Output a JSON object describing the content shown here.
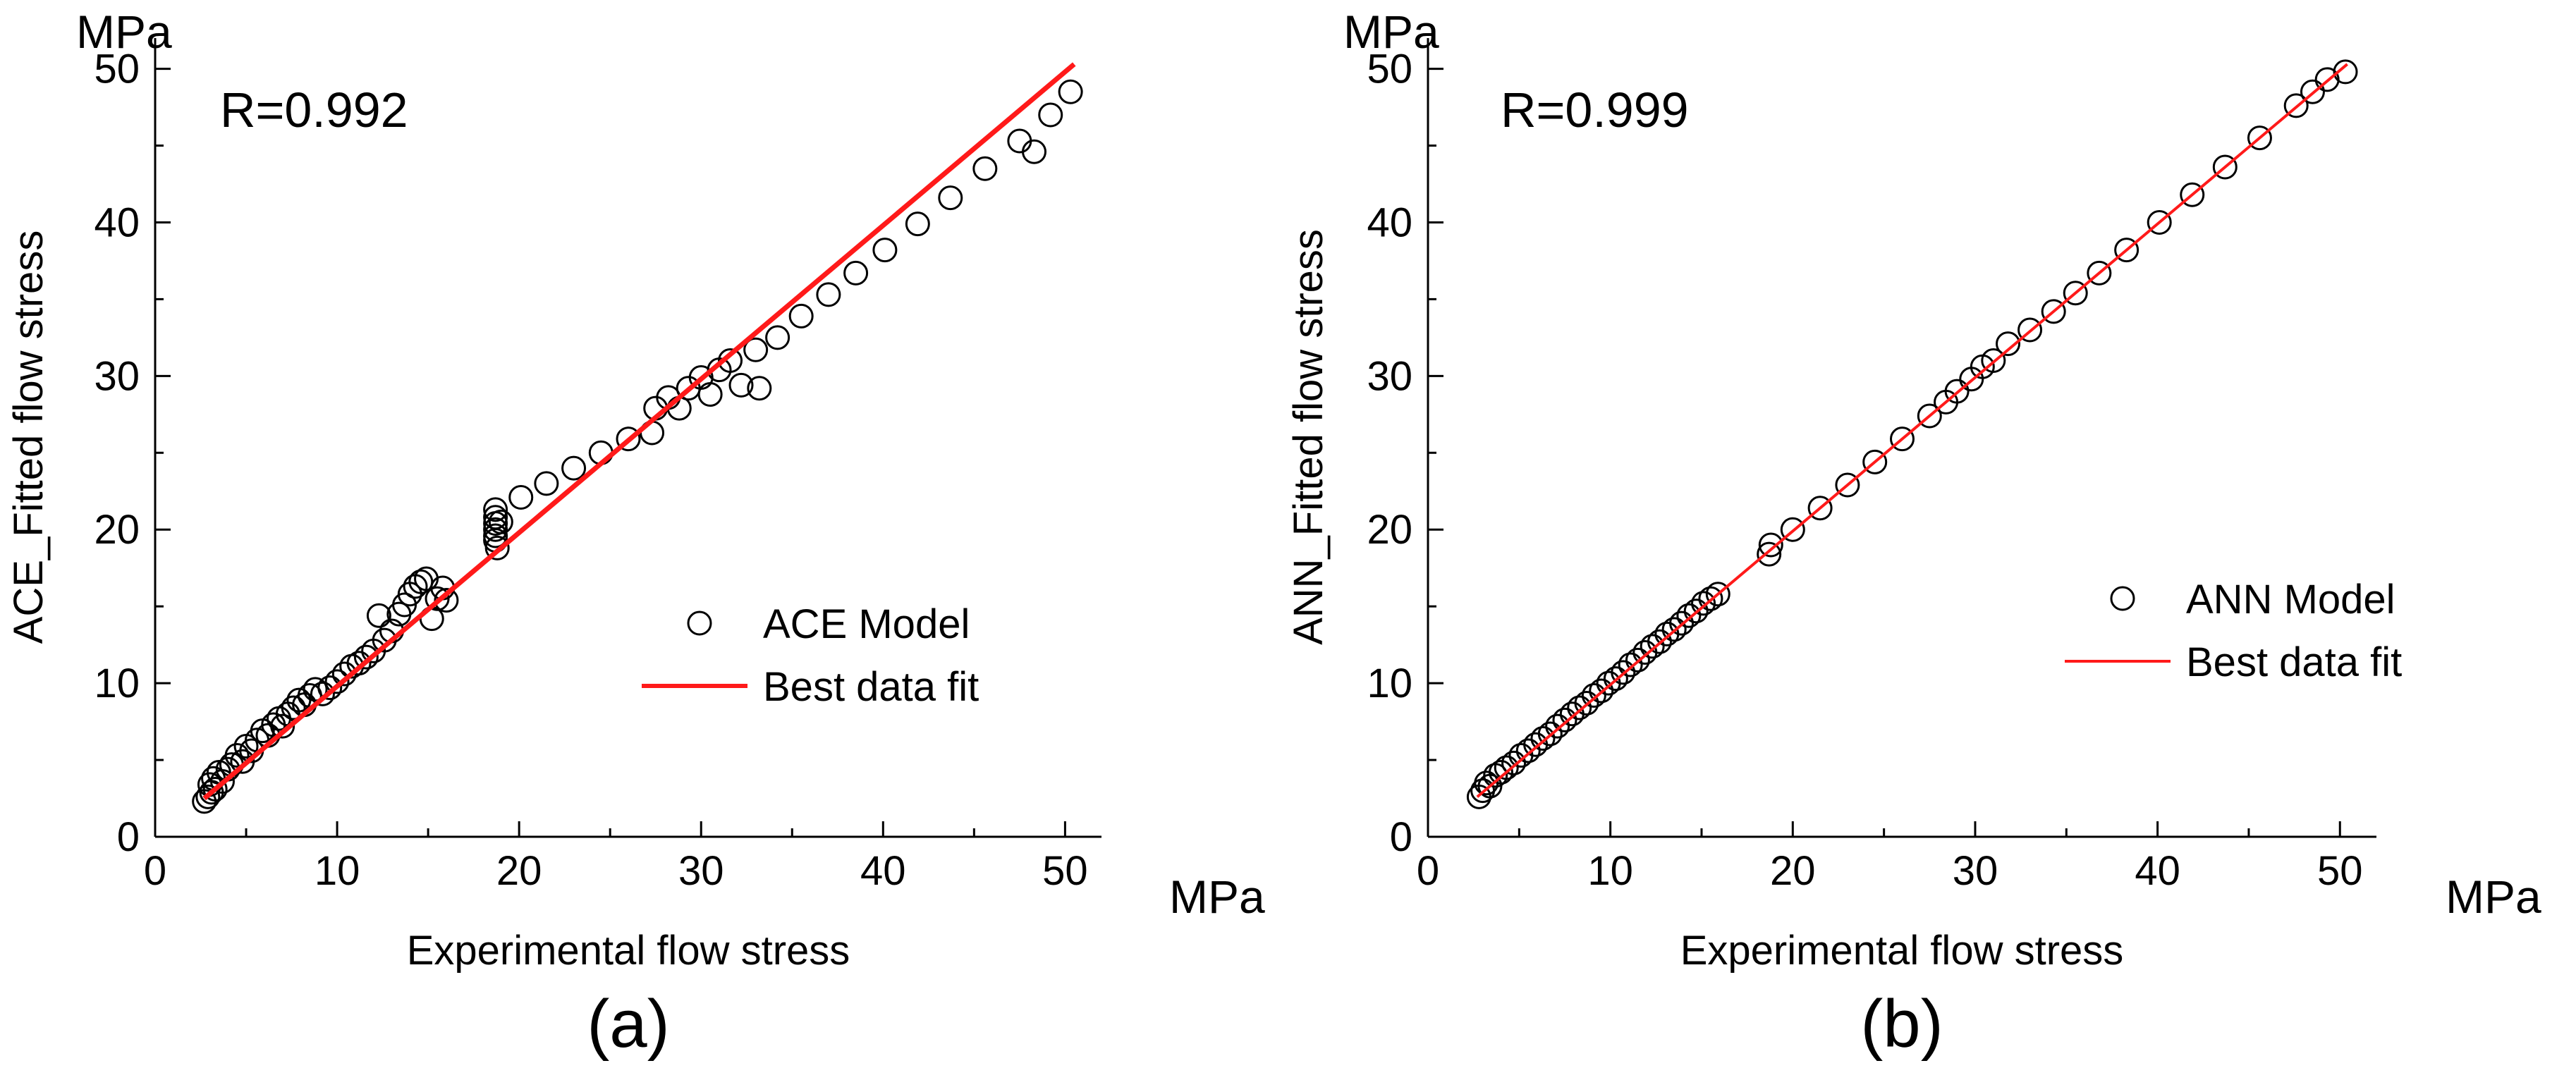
{
  "figure": {
    "panels": [
      {
        "caption": "(a)",
        "r_label": "R=0.992",
        "legend_points": "ACE Model",
        "legend_line": "Best data fit"
      },
      {
        "caption": "(b)",
        "r_label": "R=0.999",
        "legend_points": "ANN Model",
        "legend_line": "Best data fit"
      }
    ]
  },
  "colors": {
    "fit_line": "#ff1a1a",
    "axis": "#000000",
    "marker": "#000000"
  },
  "chart_data": [
    {
      "type": "scatter",
      "title": "",
      "panel_label": "(a)",
      "annotation": "R=0.992",
      "xlabel": "Experimental flow stress",
      "ylabel": "ACE_Fitted flow stress",
      "x_unit": "MPa",
      "y_unit": "MPa",
      "xlim": [
        0,
        52
      ],
      "ylim": [
        0,
        52
      ],
      "xticks": [
        0,
        10,
        20,
        30,
        40,
        50
      ],
      "yticks": [
        0,
        10,
        20,
        30,
        40,
        50
      ],
      "legend": [
        "ACE Model",
        "Best data fit"
      ],
      "legend_position": "center-right",
      "series": [
        {
          "name": "ACE Model",
          "kind": "points",
          "x": [
            2.7,
            2.9,
            3.0,
            3.1,
            3.2,
            3.3,
            3.5,
            3.7,
            4.0,
            4.2,
            4.5,
            4.8,
            5.0,
            5.3,
            5.6,
            5.9,
            6.2,
            6.5,
            6.8,
            7.0,
            7.3,
            7.6,
            7.9,
            8.2,
            8.5,
            8.8,
            9.2,
            9.6,
            10.0,
            10.4,
            10.8,
            11.2,
            11.6,
            12.0,
            12.3,
            12.6,
            13.0,
            13.4,
            13.7,
            14.0,
            14.3,
            14.6,
            14.9,
            15.2,
            15.5,
            15.8,
            16.0,
            18.7,
            18.7,
            18.7,
            18.7,
            18.7,
            18.7,
            18.8,
            19.0,
            20.1,
            21.5,
            23.0,
            24.5,
            26.0,
            27.3,
            27.5,
            28.2,
            28.8,
            29.3,
            30.0,
            30.5,
            31.0,
            31.6,
            32.2,
            33.0,
            33.2,
            34.2,
            35.5,
            37.0,
            38.5,
            40.1,
            41.9,
            43.7,
            45.6,
            47.5,
            48.3,
            49.2,
            50.3
          ],
          "y": [
            2.3,
            2.6,
            3.4,
            2.9,
            3.8,
            3.1,
            4.2,
            3.6,
            4.4,
            4.7,
            5.3,
            4.9,
            5.9,
            5.6,
            6.3,
            6.9,
            6.6,
            7.3,
            7.7,
            7.2,
            8.0,
            8.4,
            8.9,
            8.6,
            9.2,
            9.6,
            9.3,
            9.7,
            10.1,
            10.6,
            11.1,
            11.3,
            11.7,
            12.1,
            14.4,
            12.8,
            13.4,
            14.5,
            15.1,
            15.8,
            16.3,
            16.6,
            16.8,
            14.2,
            15.5,
            16.2,
            15.4,
            21.3,
            20.8,
            20.4,
            20.0,
            19.6,
            19.3,
            18.8,
            20.5,
            22.1,
            23.0,
            24.0,
            25.0,
            25.9,
            26.3,
            27.9,
            28.6,
            27.9,
            29.2,
            29.9,
            28.8,
            30.4,
            31.0,
            29.4,
            31.7,
            29.2,
            32.5,
            33.9,
            35.3,
            36.7,
            38.2,
            39.9,
            41.6,
            43.5,
            45.3,
            44.6,
            47.0,
            48.5
          ]
        },
        {
          "name": "Best data fit",
          "kind": "line",
          "x": [
            2.7,
            50.5
          ],
          "y": [
            2.5,
            50.3
          ]
        }
      ]
    },
    {
      "type": "scatter",
      "title": "",
      "panel_label": "(b)",
      "annotation": "R=0.999",
      "xlabel": "Experimental flow stress",
      "ylabel": "ANN_Fitted flow stress",
      "x_unit": "MPa",
      "y_unit": "MPa",
      "xlim": [
        0,
        52
      ],
      "ylim": [
        0,
        52
      ],
      "xticks": [
        0,
        10,
        20,
        30,
        40,
        50
      ],
      "yticks": [
        0,
        10,
        20,
        30,
        40,
        50
      ],
      "legend": [
        "ANN Model",
        "Best data fit"
      ],
      "legend_position": "center-right",
      "series": [
        {
          "name": "ANN Model",
          "kind": "points",
          "x": [
            2.8,
            3.0,
            3.2,
            3.4,
            3.7,
            4.0,
            4.3,
            4.7,
            5.1,
            5.5,
            5.9,
            6.3,
            6.7,
            7.1,
            7.5,
            7.9,
            8.3,
            8.7,
            9.1,
            9.5,
            9.9,
            10.3,
            10.7,
            11.1,
            11.5,
            11.9,
            12.3,
            12.7,
            13.1,
            13.5,
            13.9,
            14.3,
            14.7,
            15.1,
            15.5,
            15.9,
            18.7,
            18.8,
            20.0,
            21.5,
            23.0,
            24.5,
            26.0,
            27.5,
            28.4,
            29.0,
            29.8,
            30.4,
            31.0,
            31.8,
            33.0,
            34.3,
            35.5,
            36.8,
            38.3,
            40.1,
            41.9,
            43.7,
            45.6,
            47.6,
            48.5,
            49.3,
            50.3
          ],
          "y": [
            2.6,
            3.0,
            3.5,
            3.3,
            4.0,
            4.2,
            4.5,
            4.8,
            5.3,
            5.6,
            6.0,
            6.4,
            6.7,
            7.2,
            7.6,
            8.0,
            8.4,
            8.7,
            9.2,
            9.5,
            10.0,
            10.3,
            10.7,
            11.2,
            11.5,
            12.0,
            12.4,
            12.7,
            13.2,
            13.5,
            13.9,
            14.4,
            14.7,
            15.2,
            15.5,
            15.8,
            18.4,
            19.0,
            20.0,
            21.4,
            22.9,
            24.4,
            25.9,
            27.4,
            28.3,
            29.0,
            29.8,
            30.6,
            31.0,
            32.1,
            33.0,
            34.2,
            35.4,
            36.7,
            38.2,
            40.0,
            41.8,
            43.6,
            45.5,
            47.6,
            48.5,
            49.3,
            49.8
          ]
        },
        {
          "name": "Best data fit",
          "kind": "line",
          "x": [
            2.7,
            50.4
          ],
          "y": [
            2.6,
            50.3
          ]
        }
      ]
    }
  ]
}
